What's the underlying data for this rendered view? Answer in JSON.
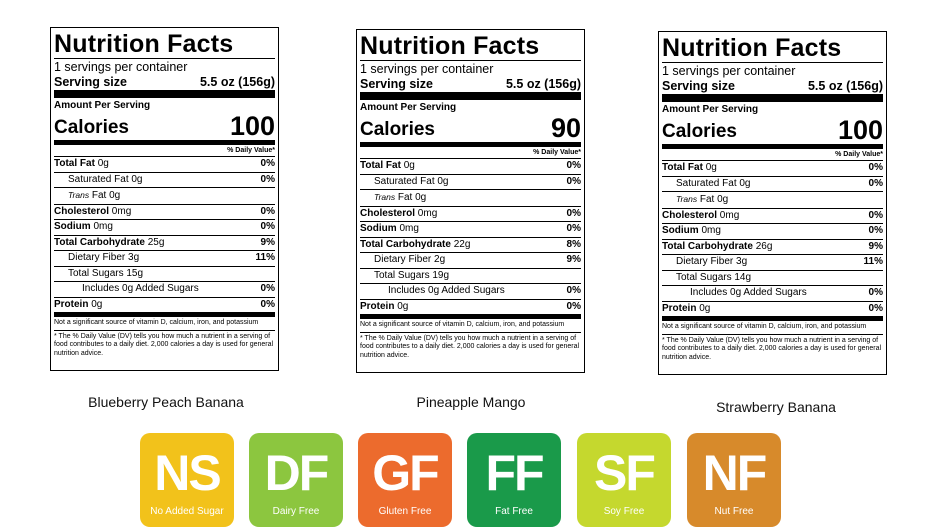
{
  "labels": [
    {
      "title": "Nutrition Facts",
      "servings": "1 servings per container",
      "serving_size_label": "Serving size",
      "serving_size": "5.5 oz (156g)",
      "amount_per_serving": "Amount Per Serving",
      "calories_label": "Calories",
      "calories": "100",
      "dv_header": "% Daily Value*",
      "rows": [
        {
          "name": "Total Fat",
          "amount": "0g",
          "dv": "0%"
        },
        {
          "name": "Saturated Fat",
          "amount": "0g",
          "dv": "0%"
        },
        {
          "name": "Trans",
          "amount": "Fat 0g",
          "dv": null
        },
        {
          "name": "Cholesterol",
          "amount": "0mg",
          "dv": "0%"
        },
        {
          "name": "Sodium",
          "amount": "0mg",
          "dv": "0%"
        },
        {
          "name": "Total Carbohydrate",
          "amount": "25g",
          "dv": "9%"
        },
        {
          "name": "Dietary Fiber",
          "amount": "3g",
          "dv": "11%"
        },
        {
          "name": "Total Sugars",
          "amount": "15g",
          "dv": null
        },
        {
          "name": "Includes 0g Added Sugars",
          "amount": null,
          "dv": "0%"
        },
        {
          "name": "Protein",
          "amount": "0g",
          "dv": "0%"
        }
      ],
      "note": "Not a significant source of vitamin D, calcium, iron, and potassium",
      "footnote": "* The % Daily Value (DV) tells you how much a nutrient in a serving of food contributes to a daily diet. 2,000 calories a day is used for general nutrition advice.",
      "product": "Blueberry Peach Banana"
    },
    {
      "title": "Nutrition Facts",
      "servings": "1 servings per container",
      "serving_size_label": "Serving size",
      "serving_size": "5.5 oz (156g)",
      "amount_per_serving": "Amount Per Serving",
      "calories_label": "Calories",
      "calories": "90",
      "dv_header": "% Daily Value*",
      "rows": [
        {
          "name": "Total Fat",
          "amount": "0g",
          "dv": "0%"
        },
        {
          "name": "Saturated Fat",
          "amount": "0g",
          "dv": "0%"
        },
        {
          "name": "Trans",
          "amount": "Fat 0g",
          "dv": null
        },
        {
          "name": "Cholesterol",
          "amount": "0mg",
          "dv": "0%"
        },
        {
          "name": "Sodium",
          "amount": "0mg",
          "dv": "0%"
        },
        {
          "name": "Total Carbohydrate",
          "amount": "22g",
          "dv": "8%"
        },
        {
          "name": "Dietary Fiber",
          "amount": "2g",
          "dv": "9%"
        },
        {
          "name": "Total Sugars",
          "amount": "19g",
          "dv": null
        },
        {
          "name": "Includes 0g Added Sugars",
          "amount": null,
          "dv": "0%"
        },
        {
          "name": "Protein",
          "amount": "0g",
          "dv": "0%"
        }
      ],
      "note": "Not a significant source of vitamin D, calcium, iron, and potassium",
      "footnote": "* The % Daily Value (DV) tells you how much a nutrient in a serving of food contributes to a daily diet. 2,000 calories a day is used for general nutrition advice.",
      "product": "Pineapple Mango"
    },
    {
      "title": "Nutrition Facts",
      "servings": "1 servings per container",
      "serving_size_label": "Serving size",
      "serving_size": "5.5 oz (156g)",
      "amount_per_serving": "Amount Per Serving",
      "calories_label": "Calories",
      "calories": "100",
      "dv_header": "% Daily Value*",
      "rows": [
        {
          "name": "Total Fat",
          "amount": "0g",
          "dv": "0%"
        },
        {
          "name": "Saturated Fat",
          "amount": "0g",
          "dv": "0%"
        },
        {
          "name": "Trans",
          "amount": "Fat 0g",
          "dv": null
        },
        {
          "name": "Cholesterol",
          "amount": "0mg",
          "dv": "0%"
        },
        {
          "name": "Sodium",
          "amount": "0mg",
          "dv": "0%"
        },
        {
          "name": "Total Carbohydrate",
          "amount": "26g",
          "dv": "9%"
        },
        {
          "name": "Dietary Fiber",
          "amount": "3g",
          "dv": "11%"
        },
        {
          "name": "Total Sugars",
          "amount": "14g",
          "dv": null
        },
        {
          "name": "Includes 0g Added Sugars",
          "amount": null,
          "dv": "0%"
        },
        {
          "name": "Protein",
          "amount": "0g",
          "dv": "0%"
        }
      ],
      "note": "Not a significant source of vitamin D, calcium, iron, and potassium",
      "footnote": "* The % Daily Value (DV) tells you how much a nutrient in a serving of food contributes to a daily diet. 2,000 calories a day is used for general nutrition advice.",
      "product": "Strawberry Banana"
    }
  ],
  "badges": [
    {
      "abbr": "NS",
      "label": "No Added Sugar",
      "color": "#f2c21b"
    },
    {
      "abbr": "DF",
      "label": "Dairy Free",
      "color": "#8cc63f"
    },
    {
      "abbr": "GF",
      "label": "Gluten Free",
      "color": "#ec6b2d"
    },
    {
      "abbr": "FF",
      "label": "Fat Free",
      "color": "#1a9a4a"
    },
    {
      "abbr": "SF",
      "label": "Soy Free",
      "color": "#c5d82e"
    },
    {
      "abbr": "NF",
      "label": "Nut Free",
      "color": "#d78a2b"
    }
  ]
}
